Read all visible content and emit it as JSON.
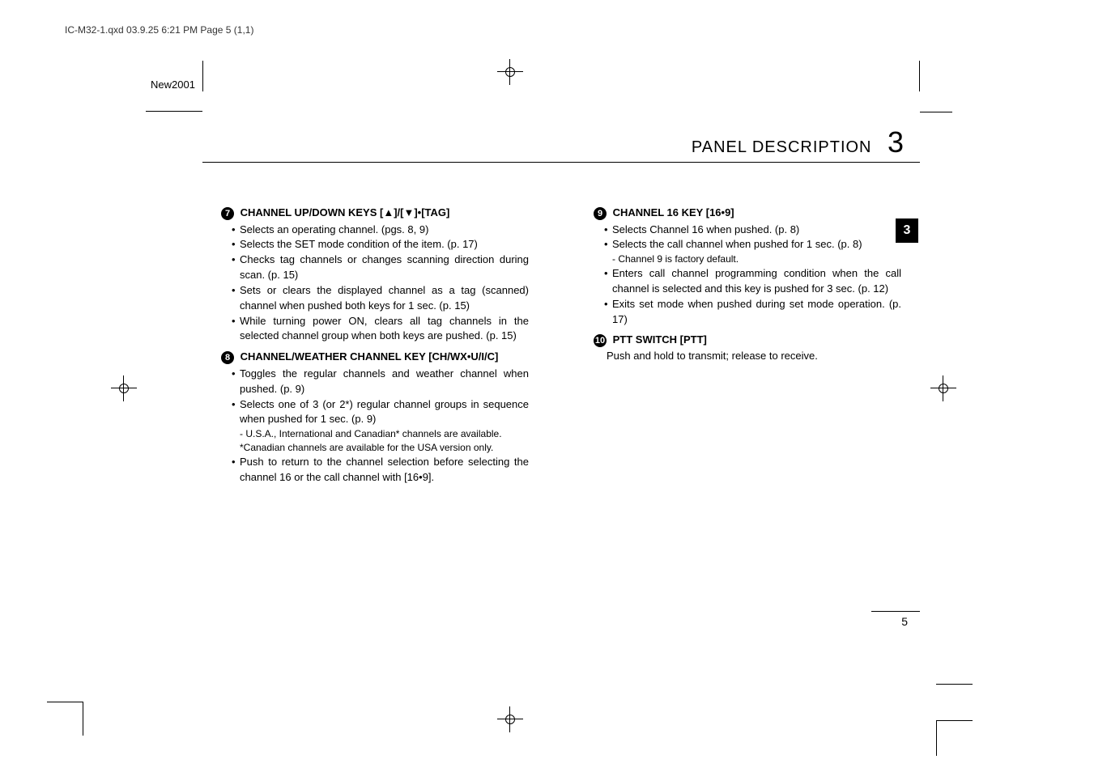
{
  "header": {
    "file_info": "IC-M32-1.qxd  03.9.25 6:21 PM  Page 5 (1,1)",
    "new_label": "New2001"
  },
  "title": {
    "section_name": "PANEL DESCRIPTION",
    "chapter_number": "3"
  },
  "tab": {
    "number": "3"
  },
  "left_column": {
    "section7": {
      "heading_num": "7",
      "heading": "CHANNEL UP/DOWN KEYS [▲]/[▼]•[TAG]",
      "bullets": [
        "Selects an operating channel. (pgs. 8, 9)",
        "Selects the SET mode condition of the item. (p. 17)",
        "Checks tag channels or changes scanning direction during scan. (p. 15)",
        "Sets or clears the displayed channel as a tag (scanned) channel when pushed both keys for 1 sec. (p. 15)",
        "While turning power ON, clears all tag channels in the selected channel group when both keys are pushed. (p. 15)"
      ]
    },
    "section8": {
      "heading_num": "8",
      "heading": "CHANNEL/WEATHER CHANNEL KEY [CH/WX•U/I/C]",
      "bullets": [
        "Toggles the regular channels and weather channel when pushed. (p. 9)",
        "Selects one of 3 (or 2*) regular channel groups in sequence when pushed for 1 sec. (p. 9)"
      ],
      "notes": [
        "- U.S.A., International and Canadian* channels are available.",
        "*Canadian channels are available for the USA version only."
      ],
      "bullet3": "Push to return to the channel selection before selecting the channel 16 or the call channel with [16•9]."
    }
  },
  "right_column": {
    "section9": {
      "heading_num": "9",
      "heading": "CHANNEL 16 KEY [16•9]",
      "bullets": [
        "Selects Channel 16 when pushed. (p. 8)",
        "Selects the call channel when pushed for 1 sec. (p. 8)"
      ],
      "note": "- Channel 9 is factory default.",
      "bullets2": [
        "Enters call channel programming condition when the call channel is selected and this key is pushed for 3 sec. (p. 12)",
        "Exits set mode when pushed during set mode operation. (p. 17)"
      ]
    },
    "section10": {
      "heading_num": "10",
      "heading": "PTT SWITCH [PTT]",
      "text": "Push and hold to transmit; release to receive."
    }
  },
  "page_number": "5"
}
